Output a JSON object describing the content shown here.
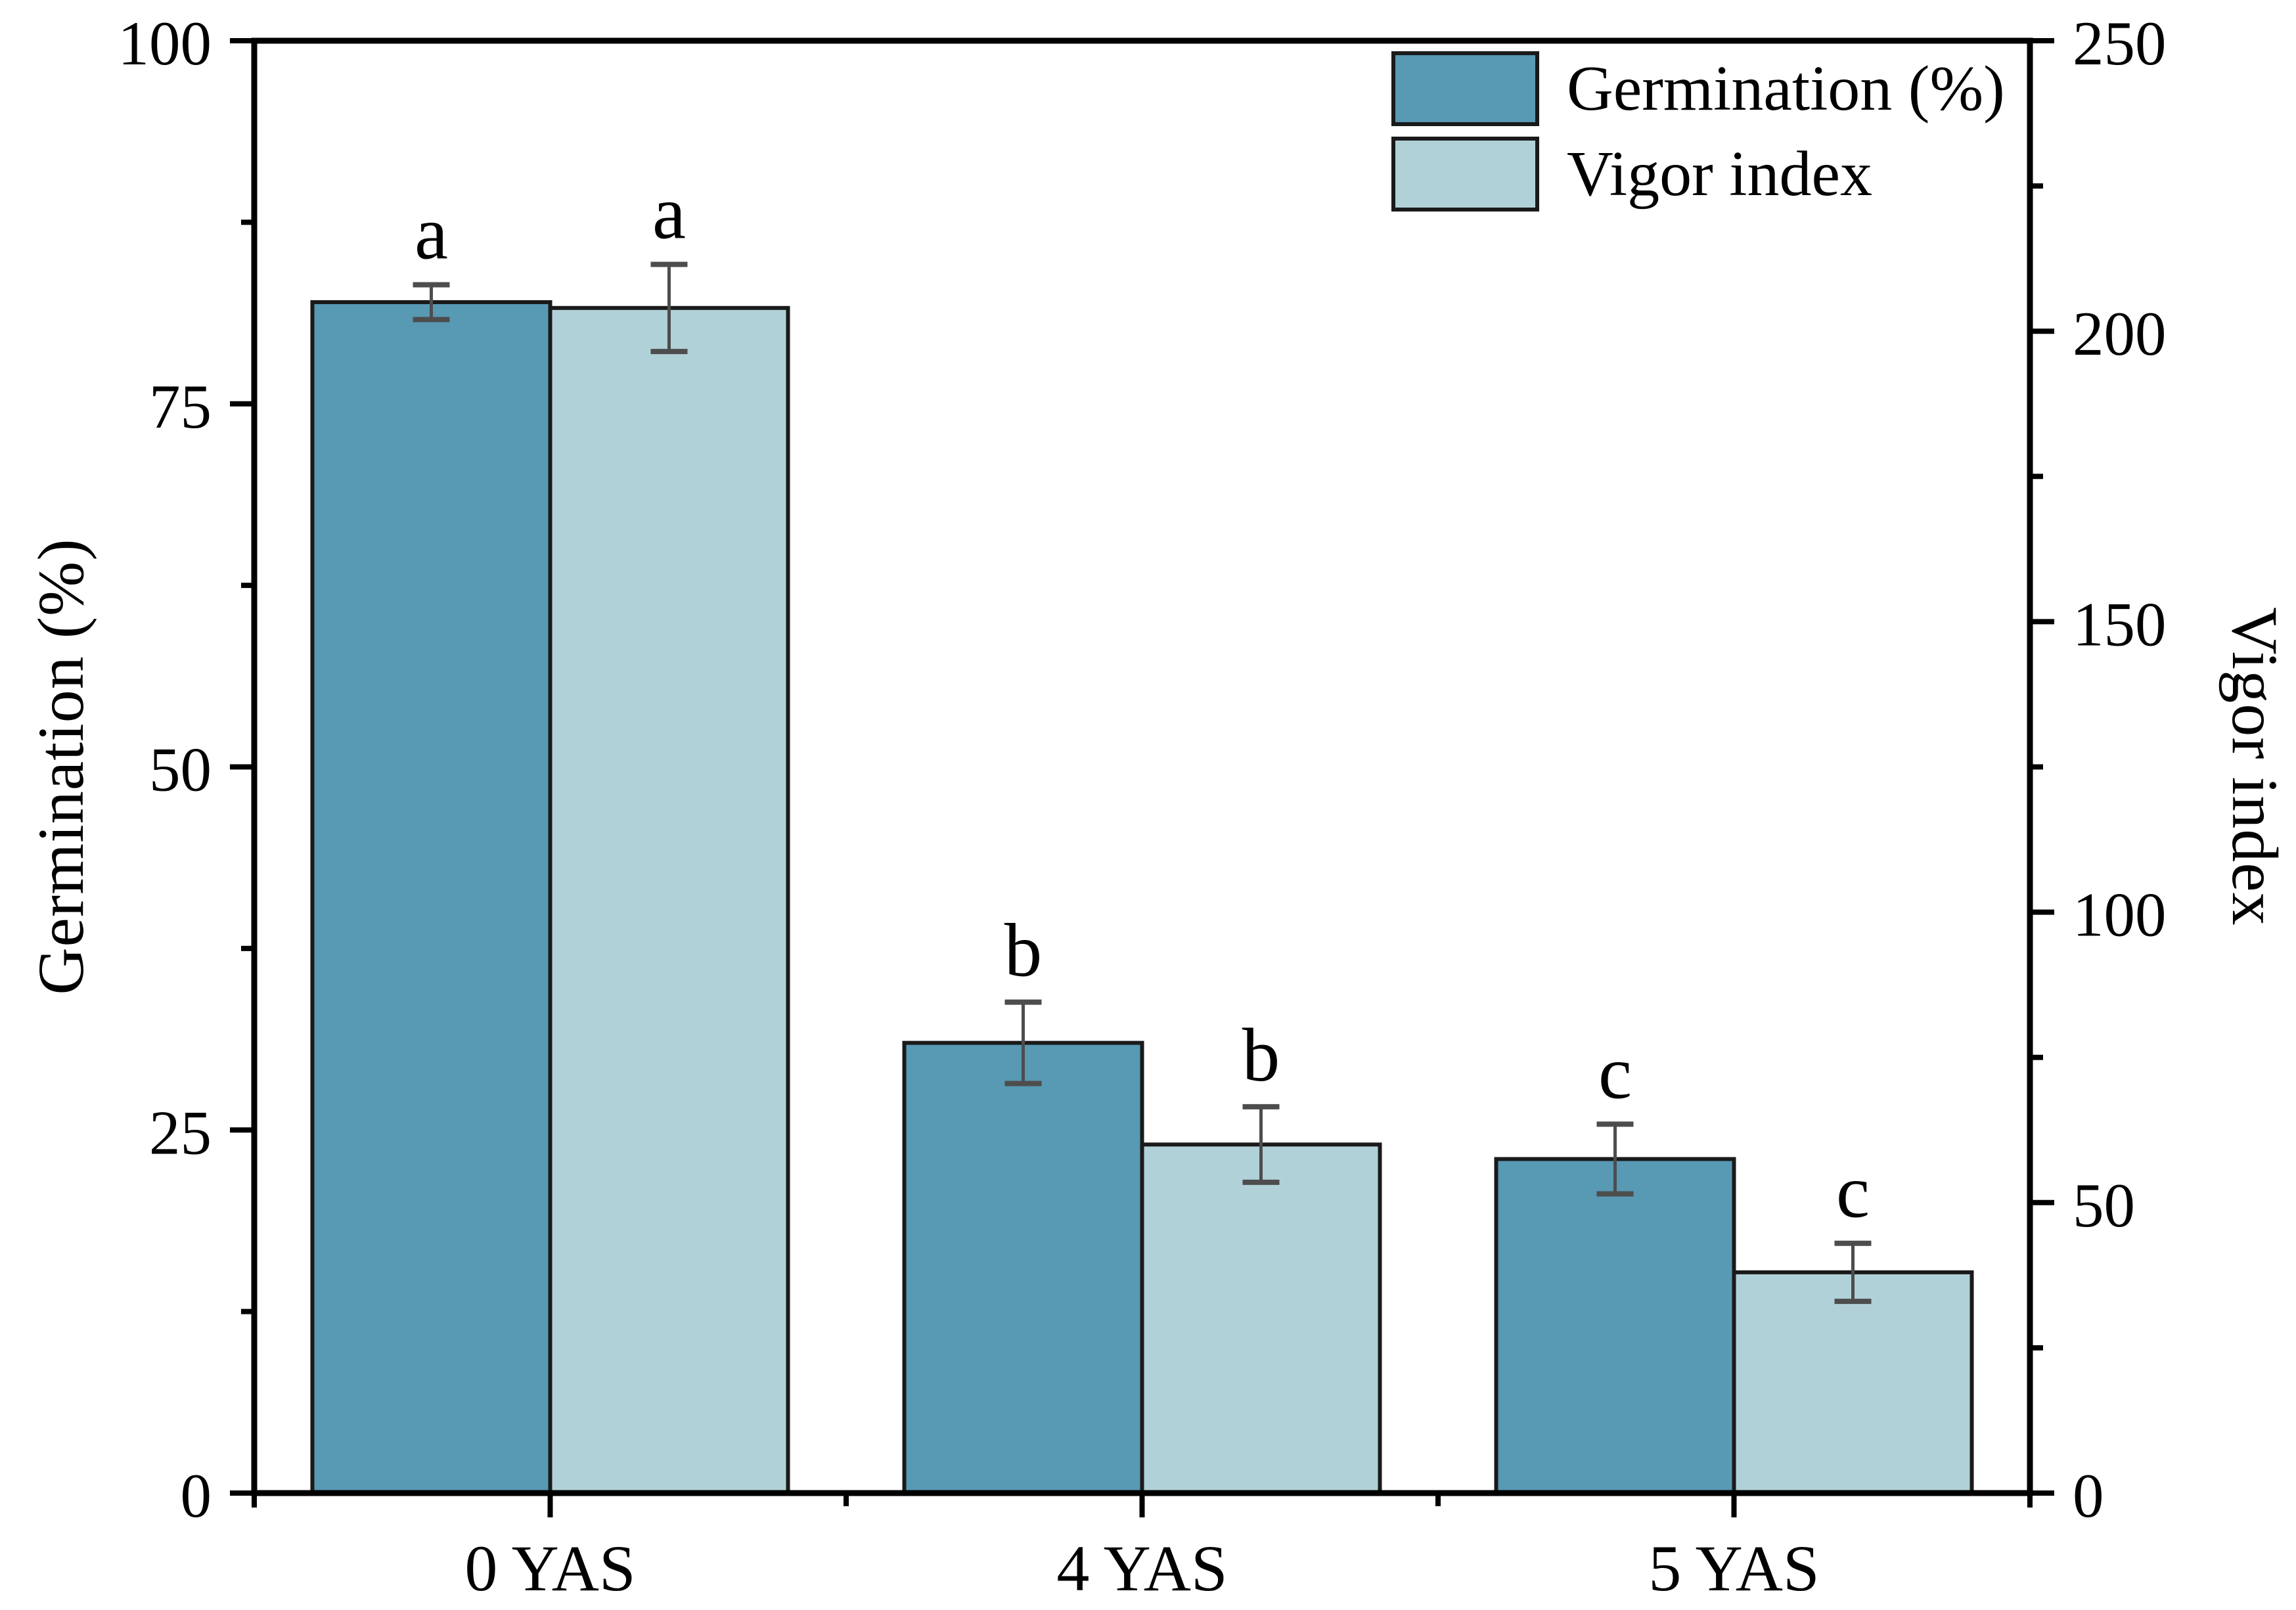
{
  "chart_data": {
    "type": "bar",
    "title": "",
    "categories": [
      "0 YAS",
      "4 YAS",
      "5 YAS"
    ],
    "series": [
      {
        "name": "Germination (%)",
        "axis": "left",
        "color": "#5899b4",
        "values": [
          82,
          31,
          23
        ],
        "errors": [
          1.2,
          2.8,
          2.4
        ],
        "sig_letters": [
          "a",
          "b",
          "c"
        ]
      },
      {
        "name": "Vigor index",
        "axis": "right",
        "color": "#b0d1d7",
        "values": [
          204,
          60,
          38
        ],
        "errors": [
          7.5,
          6.5,
          5.0
        ],
        "sig_letters": [
          "a",
          "b",
          "c"
        ]
      }
    ],
    "axes": {
      "left": {
        "label": "Germination (%)",
        "min": 0,
        "max": 100,
        "major_tick_values": [
          0,
          25,
          50,
          75,
          100
        ],
        "major_tick_labels": [
          "0",
          "25",
          "50",
          "75",
          "100"
        ],
        "minor_step": 12.5
      },
      "right": {
        "label": "Vigor index",
        "min": 0,
        "max": 250,
        "major_tick_values": [
          0,
          50,
          100,
          150,
          200,
          250
        ],
        "major_tick_labels": [
          "0",
          "50",
          "100",
          "150",
          "200",
          "250"
        ],
        "minor_step": 25
      },
      "x": {
        "tick_labels": [
          "0 YAS",
          "4 YAS",
          "5 YAS"
        ]
      }
    },
    "legend": {
      "position": "top-right-inside",
      "items": [
        {
          "label": "Germination (%)",
          "color": "#5899b4"
        },
        {
          "label": "Vigor index",
          "color": "#b0d1d7"
        }
      ]
    },
    "style": {
      "background": "#ffffff",
      "axis_color": "#000000",
      "bar_border_color": "#1a1a1a",
      "error_bar_color": "#4d4d4d",
      "grid": "off"
    }
  }
}
